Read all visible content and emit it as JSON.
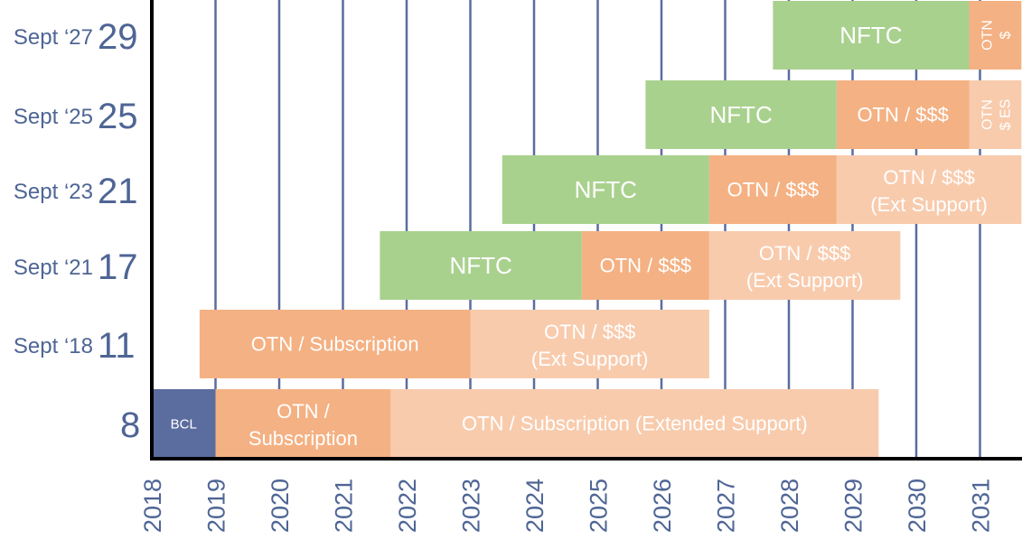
{
  "chart_data": {
    "type": "bar",
    "orientation": "horizontal-timeline",
    "title": "",
    "xlabel": "",
    "ylabel": "",
    "x_ticks": [
      "2018",
      "2019",
      "2020",
      "2021",
      "2022",
      "2023",
      "2024",
      "2025",
      "2026",
      "2027",
      "2028",
      "2029",
      "2030",
      "2031"
    ],
    "xlim": [
      2018,
      2031.65
    ],
    "grid": "vertical",
    "colors": {
      "nftc": "#a9d18e",
      "otn_paid": "#f4b183",
      "otn_extended": "#f8cbad",
      "bcl": "#5b6d9f",
      "axis": "#000000",
      "grid": "#5b6d9f",
      "label": "#4e6595"
    },
    "rows": [
      {
        "release": "Sept ‘27",
        "version": "29",
        "segments": [
          {
            "label": "NFTC",
            "start": 2027.75,
            "end": 2030.83,
            "kind": "nftc"
          },
          {
            "label": "OTN $",
            "start": 2030.83,
            "end": 2031.65,
            "kind": "otn_paid",
            "vertical": true
          }
        ]
      },
      {
        "release": "Sept ‘25",
        "version": "25",
        "segments": [
          {
            "label": "NFTC",
            "start": 2025.75,
            "end": 2028.75,
            "kind": "nftc"
          },
          {
            "label": "OTN / $$$",
            "start": 2028.75,
            "end": 2030.83,
            "kind": "otn_paid"
          },
          {
            "label": "OTN $ ES",
            "start": 2030.83,
            "end": 2031.65,
            "kind": "otn_extended",
            "vertical": true
          }
        ]
      },
      {
        "release": "Sept ‘23",
        "version": "21",
        "segments": [
          {
            "label": "NFTC",
            "start": 2023.5,
            "end": 2026.75,
            "kind": "nftc"
          },
          {
            "label": "OTN / $$$",
            "start": 2026.75,
            "end": 2028.75,
            "kind": "otn_paid"
          },
          {
            "label": "OTN / $$$ (Ext Support)",
            "start": 2028.75,
            "end": 2031.65,
            "kind": "otn_extended"
          }
        ]
      },
      {
        "release": "Sept ‘21",
        "version": "17",
        "segments": [
          {
            "label": "NFTC",
            "start": 2021.58,
            "end": 2024.75,
            "kind": "nftc"
          },
          {
            "label": "OTN / $$$",
            "start": 2024.75,
            "end": 2026.75,
            "kind": "otn_paid"
          },
          {
            "label": "OTN / $$$ (Ext Support)",
            "start": 2026.75,
            "end": 2029.75,
            "kind": "otn_extended"
          }
        ]
      },
      {
        "release": "Sept ‘18",
        "version": "11",
        "segments": [
          {
            "label": "OTN / Subscription",
            "start": 2018.75,
            "end": 2023.0,
            "kind": "otn_paid"
          },
          {
            "label": "OTN / $$$ (Ext Support)",
            "start": 2023.0,
            "end": 2026.75,
            "kind": "otn_extended"
          }
        ]
      },
      {
        "release": "",
        "version": "8",
        "segments": [
          {
            "label": "BCL",
            "start": 2018.0,
            "end": 2019.0,
            "kind": "bcl"
          },
          {
            "label": "OTN / Subscription",
            "start": 2019.0,
            "end": 2021.75,
            "kind": "otn_paid"
          },
          {
            "label": "OTN / Subscription (Extended Support)",
            "start": 2021.75,
            "end": 2029.41,
            "kind": "otn_extended"
          }
        ]
      }
    ]
  }
}
